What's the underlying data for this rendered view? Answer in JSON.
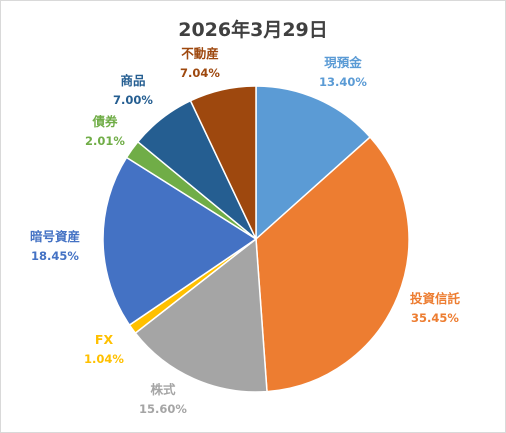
{
  "chart_data": {
    "type": "pie",
    "title": "2026年3月29日",
    "slices": [
      {
        "name": "現預金",
        "value": 13.4,
        "pct_label": "13.40%",
        "color": "#5b9bd5"
      },
      {
        "name": "投資信託",
        "value": 35.45,
        "pct_label": "35.45%",
        "color": "#ed7d31"
      },
      {
        "name": "株式",
        "value": 15.6,
        "pct_label": "15.60%",
        "color": "#a5a5a5"
      },
      {
        "name": "FX",
        "value": 1.04,
        "pct_label": "1.04%",
        "color": "#ffc000"
      },
      {
        "name": "暗号資産",
        "value": 18.45,
        "pct_label": "18.45%",
        "color": "#4472c4"
      },
      {
        "name": "債券",
        "value": 2.01,
        "pct_label": "2.01%",
        "color": "#70ad47"
      },
      {
        "name": "商品",
        "value": 7.0,
        "pct_label": "7.00%",
        "color": "#255e91"
      },
      {
        "name": "不動産",
        "value": 7.04,
        "pct_label": "7.04%",
        "color": "#9e480e"
      }
    ],
    "label_colors": [
      "#5b9bd5",
      "#ed7d31",
      "#a5a5a5",
      "#ffc000",
      "#4472c4",
      "#70ad47",
      "#255e91",
      "#9e480e"
    ],
    "legend": "none"
  }
}
